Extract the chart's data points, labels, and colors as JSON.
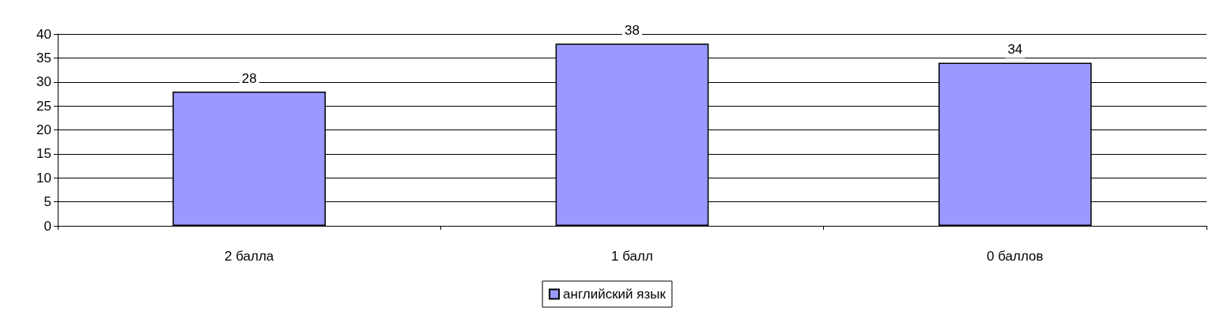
{
  "chart_data": {
    "type": "bar",
    "categories": [
      "2 балла",
      "1 балл",
      "0 баллов"
    ],
    "series": [
      {
        "name": "английский язык",
        "color": "#9999ff",
        "values": [
          28,
          38,
          34
        ]
      }
    ],
    "ylim": [
      0,
      40
    ],
    "yticks": [
      0,
      5,
      10,
      15,
      20,
      25,
      30,
      35,
      40
    ],
    "grid": "y",
    "legend": "bottom",
    "data_labels": true
  }
}
